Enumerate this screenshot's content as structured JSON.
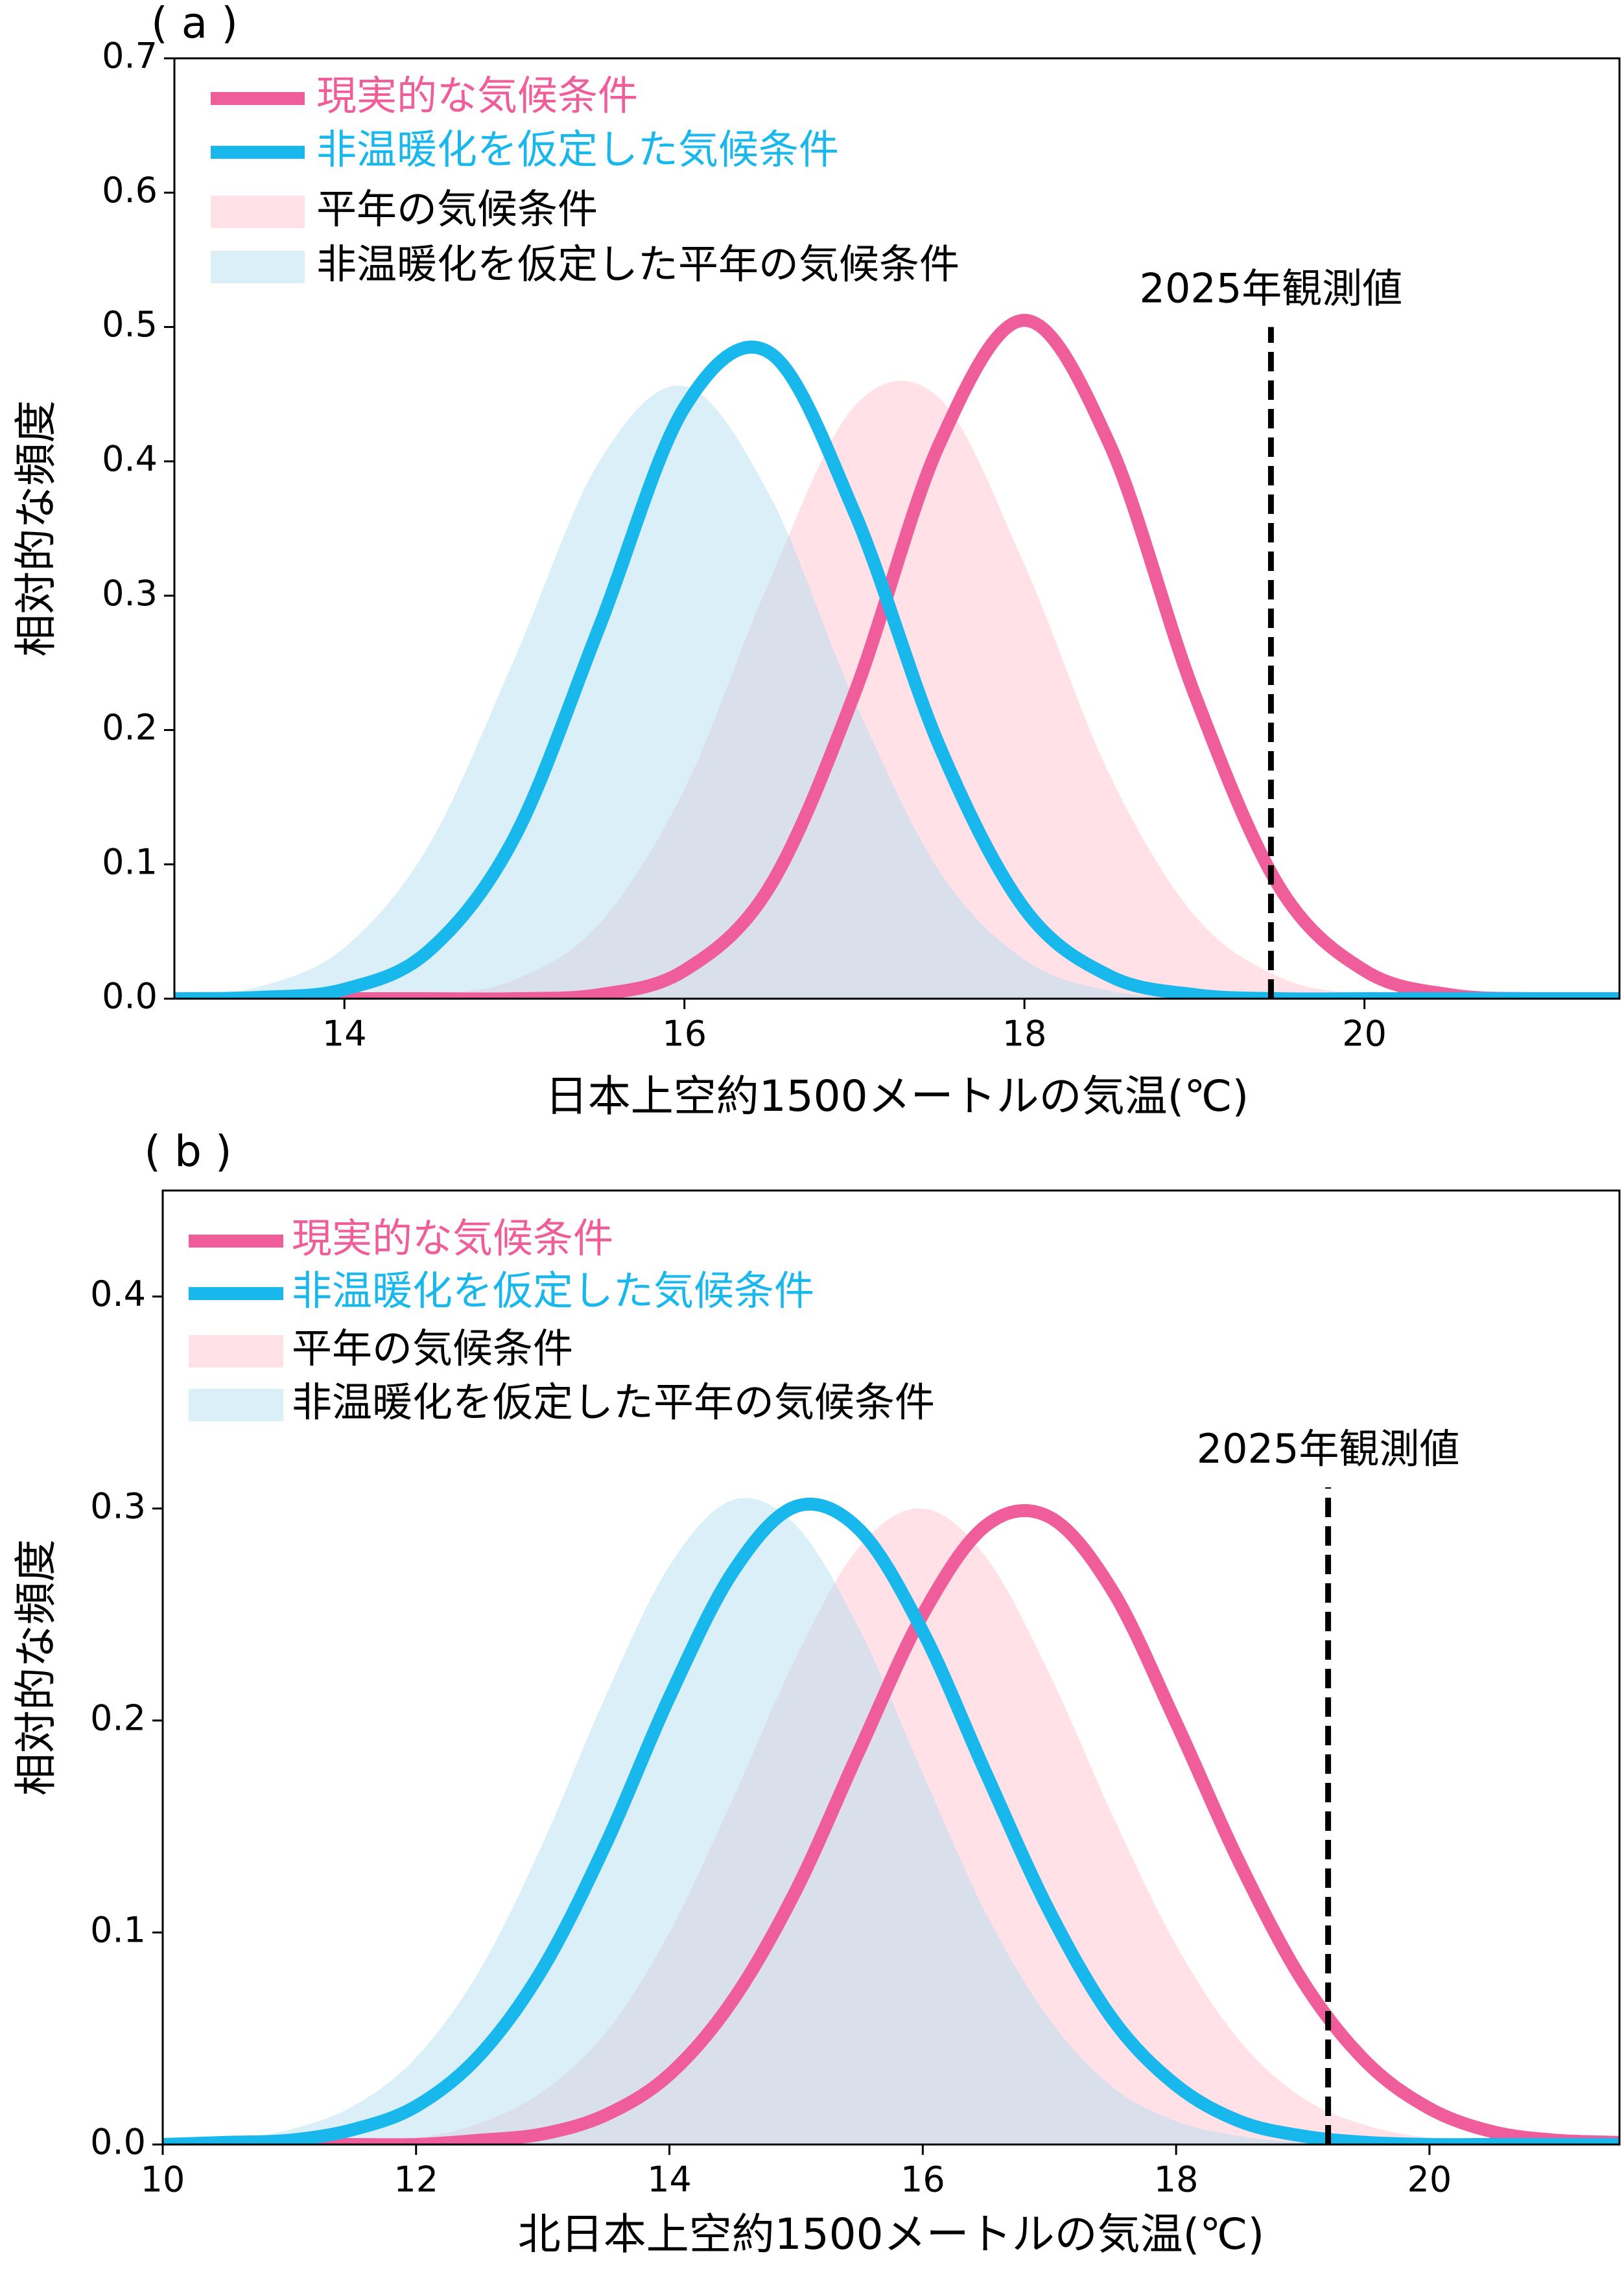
{
  "chart_data": [
    {
      "type": "line",
      "panel_label": "( a )",
      "xlabel": "日本上空約1500メートルの気温(℃)",
      "ylabel": "相対的な頻度",
      "x": [
        13,
        13.5,
        14,
        14.5,
        15,
        15.5,
        16,
        16.5,
        17,
        17.5,
        18,
        18.5,
        19,
        19.5,
        20,
        20.5,
        21,
        21.5
      ],
      "series": [
        {
          "name": "現実的な気候条件",
          "style": "line",
          "color": "#ef5d9b",
          "values": [
            0,
            0,
            0,
            0,
            0,
            0.003,
            0.021,
            0.083,
            0.227,
            0.413,
            0.505,
            0.413,
            0.227,
            0.083,
            0.021,
            0.003,
            0,
            0
          ]
        },
        {
          "name": "非温暖化を仮定した気候条件",
          "style": "line",
          "color": "#19b8ec",
          "values": [
            0,
            0.001,
            0.007,
            0.036,
            0.12,
            0.277,
            0.44,
            0.481,
            0.362,
            0.188,
            0.067,
            0.017,
            0.003,
            0,
            0,
            0,
            0,
            0
          ]
        },
        {
          "name": "平年の気候条件",
          "style": "area",
          "color": "#ffc4cf",
          "values": [
            0,
            0,
            0,
            0.003,
            0.014,
            0.056,
            0.156,
            0.311,
            0.441,
            0.447,
            0.323,
            0.167,
            0.062,
            0.016,
            0.003,
            0,
            0,
            0
          ]
        },
        {
          "name": "非温暖化を仮定した平年の気候条件",
          "style": "area",
          "color": "#b6dff0",
          "values": [
            0.002,
            0.009,
            0.038,
            0.115,
            0.253,
            0.4,
            0.456,
            0.375,
            0.222,
            0.095,
            0.029,
            0.006,
            0.001,
            0,
            0,
            0,
            0,
            0
          ]
        }
      ],
      "observed": {
        "label": "2025年観測値",
        "x": 19.45,
        "y": 0.5,
        "color": "#000000"
      },
      "xlim": [
        13,
        21.5
      ],
      "xticks": [
        14,
        16,
        18,
        20
      ],
      "ylim": [
        0,
        0.7
      ],
      "yticks": [
        {
          "value": 0,
          "label": "0.0"
        },
        0.1,
        0.2,
        0.3,
        0.4,
        0.5,
        0.6,
        0.7
      ],
      "legend": "upper left"
    },
    {
      "type": "line",
      "panel_label": "( b )",
      "xlabel": "北日本上空約1500メートルの気温(℃)",
      "ylabel": "相対的な頻度",
      "x": [
        10,
        10.5,
        11,
        11.5,
        12,
        12.5,
        13,
        13.5,
        14,
        14.5,
        15,
        15.5,
        16,
        16.5,
        17,
        17.5,
        18,
        18.5,
        19,
        19.5,
        20,
        20.5,
        21,
        21.5
      ],
      "series": [
        {
          "name": "現実的な気候条件",
          "style": "line",
          "color": "#ef5d9b",
          "values": [
            0,
            0,
            0,
            0,
            0,
            0.002,
            0.005,
            0.014,
            0.033,
            0.068,
            0.12,
            0.186,
            0.25,
            0.292,
            0.296,
            0.261,
            0.199,
            0.133,
            0.077,
            0.039,
            0.017,
            0.006,
            0.002,
            0.001
          ]
        },
        {
          "name": "非温暖化を仮定した気候条件",
          "style": "line",
          "color": "#19b8ec",
          "values": [
            0,
            0.001,
            0.002,
            0.007,
            0.018,
            0.042,
            0.083,
            0.142,
            0.211,
            0.27,
            0.301,
            0.29,
            0.242,
            0.175,
            0.11,
            0.059,
            0.028,
            0.011,
            0.004,
            0.001,
            0,
            0,
            0,
            0
          ]
        },
        {
          "name": "平年の気候条件",
          "style": "area",
          "color": "#ffc4cf",
          "values": [
            0,
            0,
            0,
            0.001,
            0.003,
            0.01,
            0.025,
            0.053,
            0.1,
            0.163,
            0.23,
            0.282,
            0.3,
            0.277,
            0.222,
            0.155,
            0.094,
            0.049,
            0.022,
            0.009,
            0.003,
            0.001,
            0,
            0
          ]
        },
        {
          "name": "非温暖化を仮定した平年の気候条件",
          "style": "area",
          "color": "#b6dff0",
          "values": [
            0.001,
            0.002,
            0.007,
            0.018,
            0.041,
            0.082,
            0.142,
            0.212,
            0.273,
            0.304,
            0.292,
            0.243,
            0.175,
            0.109,
            0.059,
            0.027,
            0.011,
            0.004,
            0.001,
            0,
            0,
            0,
            0,
            0
          ]
        }
      ],
      "observed": {
        "label": "2025年観測値",
        "x": 19.2,
        "y": 0.31,
        "color": "#000000"
      },
      "xlim": [
        10,
        21.5
      ],
      "xticks": [
        10,
        12,
        14,
        16,
        18,
        20
      ],
      "ylim": [
        0,
        0.45
      ],
      "yticks": [
        {
          "value": 0,
          "label": "0.0"
        },
        0.1,
        0.2,
        0.3,
        0.4
      ],
      "legend": "upper left"
    }
  ]
}
